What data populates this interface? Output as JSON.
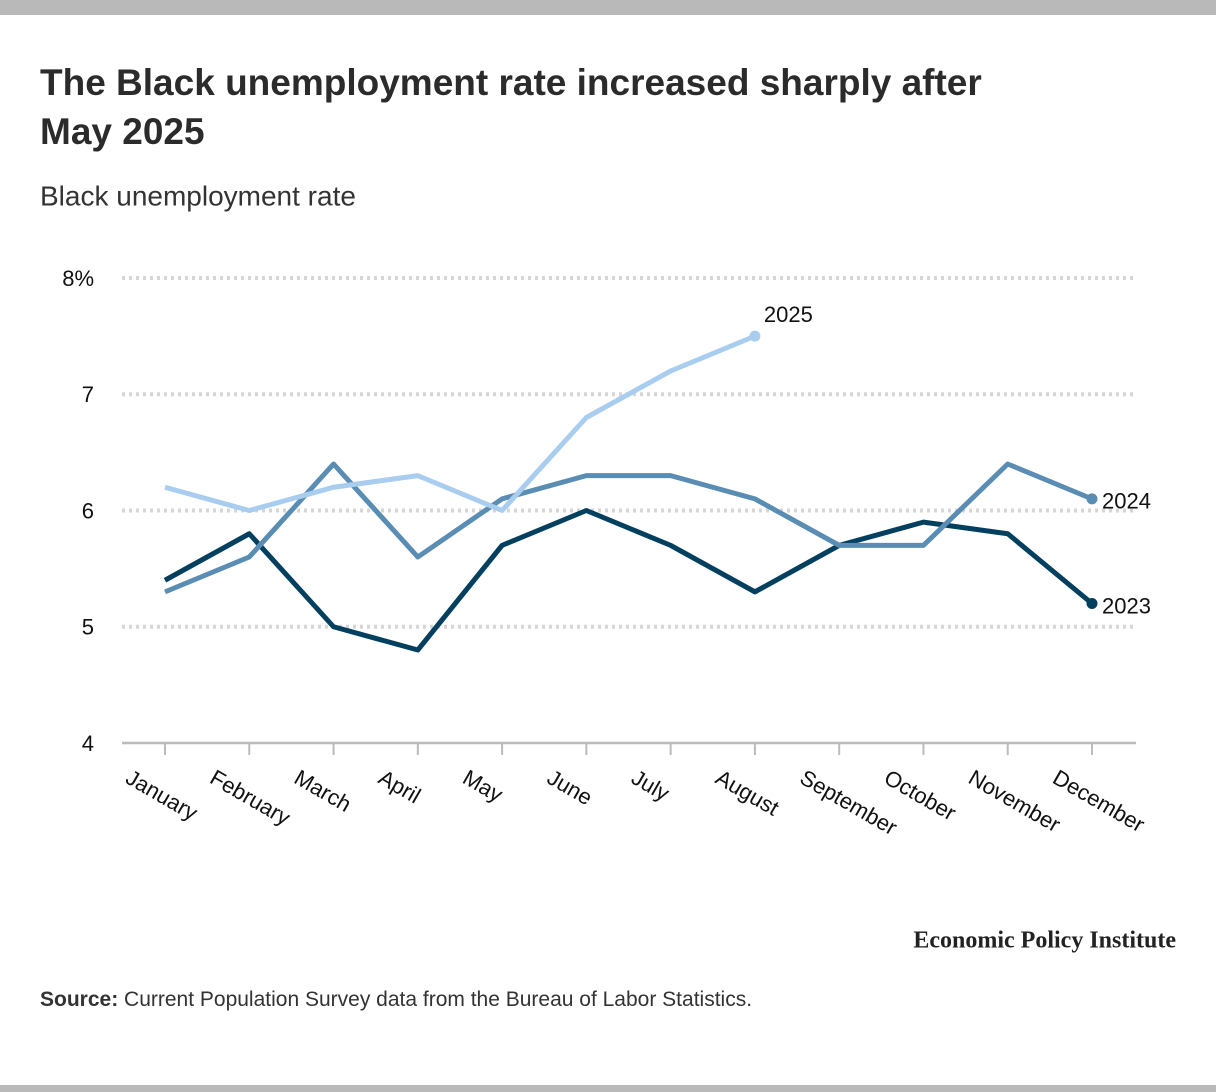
{
  "chart_data": {
    "type": "line",
    "title_lines": [
      "The Black unemployment rate increased sharply after",
      "May 2025"
    ],
    "subtitle": "Black unemployment rate",
    "categories": [
      "January",
      "February",
      "March",
      "April",
      "May",
      "June",
      "July",
      "August",
      "September",
      "October",
      "November",
      "December"
    ],
    "series": [
      {
        "name": "2023",
        "color": "#033f5e",
        "values": [
          5.4,
          5.8,
          5.0,
          4.8,
          5.7,
          6.0,
          5.7,
          5.3,
          5.7,
          5.9,
          5.8,
          5.2
        ]
      },
      {
        "name": "2024",
        "color": "#5a8db3",
        "values": [
          5.3,
          5.6,
          6.4,
          5.6,
          6.1,
          6.3,
          6.3,
          6.1,
          5.7,
          5.7,
          6.4,
          6.1
        ]
      },
      {
        "name": "2025",
        "color": "#a9cdee",
        "values": [
          6.2,
          6.0,
          6.2,
          6.3,
          6.0,
          6.8,
          7.2,
          7.5,
          null,
          null,
          null,
          null
        ]
      }
    ],
    "ylim": [
      4,
      8
    ],
    "yticks": [
      {
        "value": 8,
        "label": "8%"
      },
      7,
      6,
      5,
      4
    ],
    "grid": true,
    "brand": "Economic Policy Institute",
    "source_label": "Source:",
    "source": "Current Population Survey data from the Bureau of Labor Statistics."
  }
}
